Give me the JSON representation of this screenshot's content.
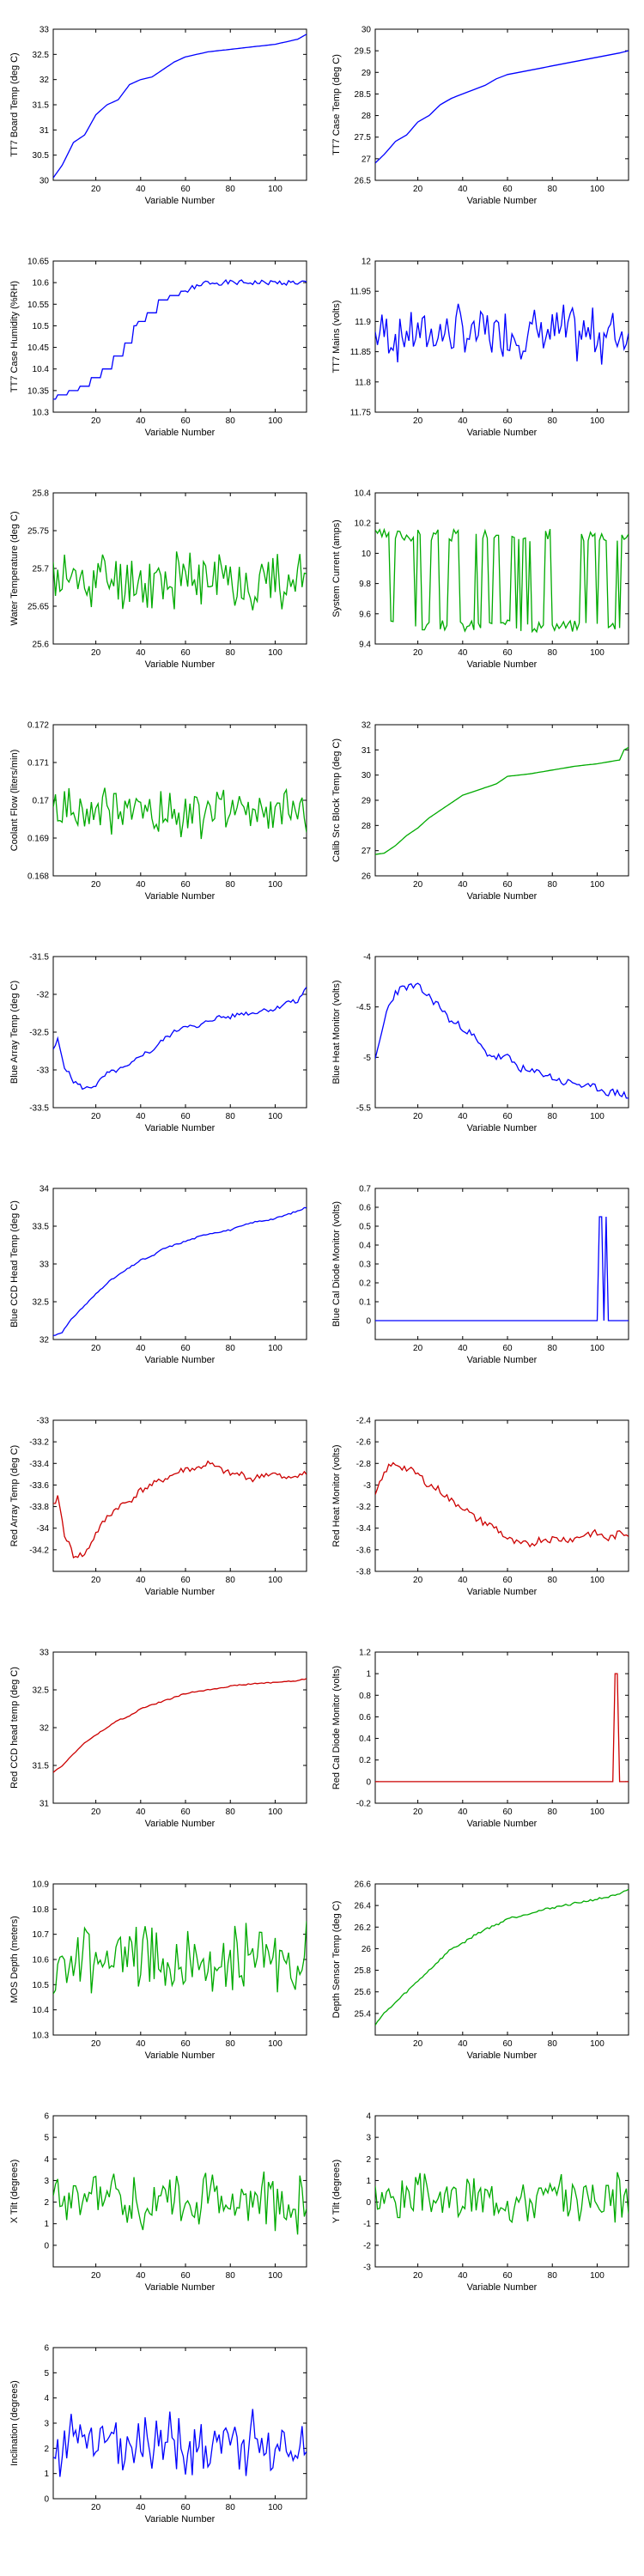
{
  "chart_data": [
    {
      "type": "line",
      "ylabel": "TT7 Board Temp (deg C)",
      "xlabel": "Variable Number",
      "xlim": [
        1,
        114
      ],
      "ylim": [
        30,
        33
      ],
      "yticks": [
        "30",
        "30.5",
        "31",
        "31.5",
        "32",
        "32.5",
        "33"
      ],
      "xticks": [
        "20",
        "40",
        "60",
        "80",
        "100"
      ],
      "color": "#0000ff",
      "mode": "smooth",
      "x": [
        1,
        5,
        10,
        15,
        20,
        25,
        30,
        35,
        40,
        45,
        50,
        55,
        60,
        65,
        70,
        80,
        90,
        100,
        110,
        114
      ],
      "y": [
        30.05,
        30.3,
        30.75,
        30.9,
        31.3,
        31.5,
        31.6,
        31.9,
        32.0,
        32.05,
        32.2,
        32.35,
        32.45,
        32.5,
        32.55,
        32.6,
        32.65,
        32.7,
        32.8,
        32.9
      ]
    },
    {
      "type": "line",
      "ylabel": "TT7 Case Temp (deg C)",
      "xlabel": "Variable Number",
      "xlim": [
        1,
        114
      ],
      "ylim": [
        26.5,
        30
      ],
      "yticks": [
        "26.5",
        "27",
        "27.5",
        "28",
        "28.5",
        "29",
        "29.5",
        "30"
      ],
      "xticks": [
        "20",
        "40",
        "60",
        "80",
        "100"
      ],
      "color": "#0000ff",
      "mode": "smooth",
      "x": [
        1,
        5,
        10,
        15,
        20,
        25,
        30,
        35,
        40,
        45,
        50,
        55,
        60,
        65,
        70,
        80,
        90,
        100,
        110,
        114
      ],
      "y": [
        26.9,
        27.1,
        27.4,
        27.55,
        27.85,
        28.0,
        28.25,
        28.4,
        28.5,
        28.6,
        28.7,
        28.85,
        28.95,
        29.0,
        29.05,
        29.15,
        29.25,
        29.35,
        29.45,
        29.5
      ]
    },
    {
      "type": "line",
      "ylabel": "TT7 Case Humidity (%RH)",
      "xlabel": "Variable Number",
      "xlim": [
        1,
        114
      ],
      "ylim": [
        10.3,
        10.65
      ],
      "yticks": [
        "10.3",
        "10.35",
        "10.4",
        "10.45",
        "10.5",
        "10.55",
        "10.6",
        "10.65"
      ],
      "xticks": [
        "20",
        "40",
        "60",
        "80",
        "100"
      ],
      "color": "#0000ff",
      "mode": "step",
      "x": [
        1,
        5,
        10,
        15,
        20,
        25,
        30,
        35,
        38,
        40,
        45,
        50,
        55,
        60,
        65,
        70,
        114
      ],
      "y": [
        10.33,
        10.34,
        10.35,
        10.36,
        10.38,
        10.4,
        10.43,
        10.46,
        10.5,
        10.51,
        10.53,
        10.56,
        10.57,
        10.58,
        10.59,
        10.6,
        10.6
      ],
      "noise_amplitude": 0.012,
      "noise_start": 60
    },
    {
      "type": "line",
      "ylabel": "TT7 Mains (volts)",
      "xlabel": "Variable Number",
      "xlim": [
        1,
        114
      ],
      "ylim": [
        11.75,
        12
      ],
      "yticks": [
        "11.75",
        "11.8",
        "11.85",
        "11.9",
        "11.95",
        "12"
      ],
      "xticks": [
        "20",
        "40",
        "60",
        "80",
        "100"
      ],
      "color": "#0000ff",
      "mode": "noise",
      "base": 11.88,
      "noise_amplitude": 0.055,
      "levels": [
        11.85,
        11.9,
        11.93
      ],
      "seed": 7
    },
    {
      "type": "line",
      "ylabel": "Water Temperature (deg C)",
      "xlabel": "Variable Number",
      "xlim": [
        1,
        114
      ],
      "ylim": [
        25.6,
        25.8
      ],
      "yticks": [
        "25.6",
        "25.65",
        "25.7",
        "25.75",
        "25.8"
      ],
      "xticks": [
        "20",
        "40",
        "60",
        "80",
        "100"
      ],
      "color": "#00aa00",
      "mode": "noise",
      "base": 25.685,
      "noise_amplitude": 0.05,
      "seed": 11
    },
    {
      "type": "line",
      "ylabel": "System Current (amps)",
      "xlabel": "Variable Number",
      "xlim": [
        1,
        114
      ],
      "ylim": [
        9.4,
        10.4
      ],
      "yticks": [
        "9.4",
        "9.6",
        "9.8",
        "10",
        "10.2",
        "10.4"
      ],
      "xticks": [
        "20",
        "40",
        "60",
        "80",
        "100"
      ],
      "color": "#00aa00",
      "mode": "square",
      "low": 9.52,
      "high": 10.12,
      "noise_amplitude": 0.08,
      "seed": 3
    },
    {
      "type": "line",
      "ylabel": "Coolant Flow (liters/min)",
      "xlabel": "Variable Number",
      "xlim": [
        1,
        114
      ],
      "ylim": [
        0.168,
        0.172
      ],
      "yticks": [
        "0.168",
        "0.169",
        "0.17",
        "0.171",
        "0.172"
      ],
      "xticks": [
        "20",
        "40",
        "60",
        "80",
        "100"
      ],
      "color": "#00aa00",
      "mode": "noise",
      "base": 0.1697,
      "noise_amplitude": 0.0008,
      "seed": 19
    },
    {
      "type": "line",
      "ylabel": "Calib Src Block Temp (deg C)",
      "xlabel": "Variable Number",
      "xlim": [
        1,
        114
      ],
      "ylim": [
        26,
        32
      ],
      "yticks": [
        "26",
        "27",
        "28",
        "29",
        "30",
        "31",
        "32"
      ],
      "xticks": [
        "20",
        "40",
        "60",
        "80",
        "100"
      ],
      "color": "#00aa00",
      "mode": "smooth",
      "x": [
        1,
        5,
        10,
        15,
        20,
        25,
        30,
        35,
        40,
        45,
        50,
        55,
        60,
        65,
        70,
        80,
        90,
        100,
        110,
        112,
        114
      ],
      "y": [
        26.85,
        26.9,
        27.2,
        27.6,
        27.9,
        28.3,
        28.6,
        28.9,
        29.2,
        29.35,
        29.5,
        29.65,
        29.95,
        30.0,
        30.05,
        30.2,
        30.35,
        30.45,
        30.6,
        31.0,
        31.1
      ]
    },
    {
      "type": "line",
      "ylabel": "Blue Array Temp (deg C)",
      "xlabel": "Variable Number",
      "xlim": [
        1,
        114
      ],
      "ylim": [
        -33.5,
        -31.5
      ],
      "yticks": [
        "-33.5",
        "-33",
        "-32.5",
        "-32",
        "-31.5"
      ],
      "xticks": [
        "20",
        "40",
        "60",
        "80",
        "100"
      ],
      "color": "#0000ff",
      "mode": "smooth",
      "x": [
        1,
        3,
        6,
        10,
        15,
        20,
        25,
        30,
        35,
        40,
        45,
        50,
        55,
        60,
        65,
        70,
        75,
        80,
        85,
        90,
        95,
        100,
        105,
        110,
        114
      ],
      "y": [
        -32.75,
        -32.6,
        -32.95,
        -33.15,
        -33.25,
        -33.2,
        -33.05,
        -33.0,
        -32.95,
        -32.8,
        -32.75,
        -32.6,
        -32.5,
        -32.4,
        -32.45,
        -32.35,
        -32.3,
        -32.3,
        -32.25,
        -32.25,
        -32.2,
        -32.2,
        -32.1,
        -32.1,
        -31.9
      ],
      "noise_amplitude": 0.06,
      "seed": 5
    },
    {
      "type": "line",
      "ylabel": "Blue Heat Monitor (volts)",
      "xlabel": "Variable Number",
      "xlim": [
        1,
        114
      ],
      "ylim": [
        -5.5,
        -4
      ],
      "yticks": [
        "-5.5",
        "-5",
        "-4.5",
        "-4"
      ],
      "xticks": [
        "20",
        "40",
        "60",
        "80",
        "100"
      ],
      "color": "#0000ff",
      "mode": "smooth",
      "x": [
        1,
        3,
        6,
        10,
        15,
        20,
        25,
        30,
        35,
        40,
        45,
        50,
        55,
        60,
        65,
        70,
        75,
        80,
        85,
        90,
        95,
        100,
        105,
        110,
        114
      ],
      "y": [
        -5.05,
        -4.85,
        -4.55,
        -4.35,
        -4.3,
        -4.3,
        -4.4,
        -4.5,
        -4.65,
        -4.7,
        -4.8,
        -4.95,
        -5.0,
        -5.0,
        -5.1,
        -5.15,
        -5.15,
        -5.2,
        -5.25,
        -5.25,
        -5.3,
        -5.3,
        -5.35,
        -5.35,
        -5.4
      ],
      "noise_amplitude": 0.08,
      "seed": 23
    },
    {
      "type": "line",
      "ylabel": "Blue CCD Head Temp (deg C)",
      "xlabel": "Variable Number",
      "xlim": [
        1,
        114
      ],
      "ylim": [
        32,
        34
      ],
      "yticks": [
        "32",
        "32.5",
        "33",
        "33.5",
        "34"
      ],
      "xticks": [
        "20",
        "40",
        "60",
        "80",
        "100"
      ],
      "color": "#0000ff",
      "mode": "smooth",
      "x": [
        1,
        5,
        10,
        15,
        20,
        25,
        30,
        35,
        40,
        45,
        50,
        55,
        60,
        65,
        70,
        80,
        90,
        100,
        110,
        114
      ],
      "y": [
        32.05,
        32.1,
        32.3,
        32.45,
        32.6,
        32.75,
        32.85,
        32.95,
        33.05,
        33.1,
        33.2,
        33.25,
        33.3,
        33.35,
        33.4,
        33.45,
        33.55,
        33.6,
        33.7,
        33.75
      ],
      "noise_amplitude": 0.02,
      "seed": 31
    },
    {
      "type": "line",
      "ylabel": "Blue Cal Diode Monitor (volts)",
      "xlabel": "Variable Number",
      "xlim": [
        1,
        114
      ],
      "ylim": [
        -0.1,
        0.7
      ],
      "yticks": [
        "0",
        "0.1",
        "0.2",
        "0.3",
        "0.4",
        "0.5",
        "0.6",
        "0.7"
      ],
      "xticks": [
        "20",
        "40",
        "60",
        "80",
        "100"
      ],
      "color": "#0000ff",
      "mode": "raw",
      "x": [
        1,
        100,
        101,
        102,
        103,
        104,
        105,
        106,
        114
      ],
      "y": [
        0,
        0,
        0.55,
        0.55,
        0,
        0.55,
        0,
        0,
        0
      ]
    },
    {
      "type": "line",
      "ylabel": "Red Array Temp (deg C)",
      "xlabel": "Variable Number",
      "xlim": [
        1,
        114
      ],
      "ylim": [
        -34.4,
        -33
      ],
      "yticks": [
        "-34.2",
        "-34",
        "-33.8",
        "-33.6",
        "-33.4",
        "-33.2",
        "-33"
      ],
      "xticks": [
        "20",
        "40",
        "60",
        "80",
        "100"
      ],
      "color": "#cc0000",
      "mode": "smooth",
      "x": [
        1,
        3,
        6,
        10,
        15,
        20,
        25,
        30,
        35,
        40,
        45,
        50,
        55,
        60,
        65,
        70,
        75,
        80,
        85,
        90,
        95,
        100,
        105,
        110,
        114
      ],
      "y": [
        -33.8,
        -33.7,
        -34.05,
        -34.25,
        -34.25,
        -34.05,
        -33.9,
        -33.8,
        -33.75,
        -33.65,
        -33.6,
        -33.55,
        -33.5,
        -33.45,
        -33.45,
        -33.4,
        -33.45,
        -33.5,
        -33.5,
        -33.55,
        -33.5,
        -33.5,
        -33.55,
        -33.5,
        -33.5
      ],
      "noise_amplitude": 0.06,
      "seed": 41
    },
    {
      "type": "line",
      "ylabel": "Red Heat Monitor (volts)",
      "xlabel": "Variable Number",
      "xlim": [
        1,
        114
      ],
      "ylim": [
        -3.8,
        -2.4
      ],
      "yticks": [
        "-3.8",
        "-3.6",
        "-3.4",
        "-3.2",
        "-3",
        "-2.8",
        "-2.6",
        "-2.4"
      ],
      "xticks": [
        "20",
        "40",
        "60",
        "80",
        "100"
      ],
      "color": "#cc0000",
      "mode": "smooth",
      "x": [
        1,
        3,
        6,
        10,
        15,
        20,
        25,
        30,
        35,
        40,
        45,
        50,
        55,
        60,
        65,
        70,
        75,
        80,
        85,
        90,
        95,
        100,
        105,
        110,
        114
      ],
      "y": [
        -3.1,
        -3.0,
        -2.85,
        -2.8,
        -2.85,
        -2.9,
        -3.0,
        -3.05,
        -3.15,
        -3.2,
        -3.3,
        -3.35,
        -3.4,
        -3.5,
        -3.55,
        -3.55,
        -3.5,
        -3.5,
        -3.5,
        -3.5,
        -3.45,
        -3.45,
        -3.5,
        -3.45,
        -3.45
      ],
      "noise_amplitude": 0.07,
      "seed": 43
    },
    {
      "type": "line",
      "ylabel": "Red CCD head temp (deg C)",
      "xlabel": "Variable Number",
      "xlim": [
        1,
        114
      ],
      "ylim": [
        31,
        33
      ],
      "yticks": [
        "31",
        "31.5",
        "32",
        "32.5",
        "33"
      ],
      "xticks": [
        "20",
        "40",
        "60",
        "80",
        "100"
      ],
      "color": "#cc0000",
      "mode": "smooth",
      "x": [
        1,
        5,
        10,
        15,
        20,
        25,
        30,
        35,
        40,
        45,
        50,
        55,
        60,
        65,
        70,
        80,
        90,
        100,
        110,
        114
      ],
      "y": [
        31.4,
        31.5,
        31.65,
        31.8,
        31.9,
        32.0,
        32.1,
        32.15,
        32.25,
        32.3,
        32.35,
        32.4,
        32.45,
        32.48,
        32.5,
        32.55,
        32.58,
        32.6,
        32.62,
        32.65
      ],
      "noise_amplitude": 0.015,
      "seed": 47
    },
    {
      "type": "line",
      "ylabel": "Red Cal Diode Monitor (volts)",
      "xlabel": "Variable Number",
      "xlim": [
        1,
        114
      ],
      "ylim": [
        -0.2,
        1.2
      ],
      "yticks": [
        "-0.2",
        "0",
        "0.2",
        "0.4",
        "0.6",
        "0.8",
        "1",
        "1.2"
      ],
      "xticks": [
        "20",
        "40",
        "60",
        "80",
        "100"
      ],
      "color": "#cc0000",
      "mode": "raw",
      "x": [
        1,
        107,
        108,
        109,
        110,
        111,
        114
      ],
      "y": [
        0,
        0,
        1.0,
        1.0,
        0,
        0,
        0
      ]
    },
    {
      "type": "line",
      "ylabel": "MOS Depth (meters)",
      "xlabel": "Variable Number",
      "xlim": [
        1,
        114
      ],
      "ylim": [
        10.3,
        10.9
      ],
      "yticks": [
        "10.3",
        "10.4",
        "10.5",
        "10.6",
        "10.7",
        "10.8",
        "10.9"
      ],
      "xticks": [
        "20",
        "40",
        "60",
        "80",
        "100"
      ],
      "color": "#00aa00",
      "mode": "noise",
      "base": 10.6,
      "noise_amplitude": 0.17,
      "seed": 53
    },
    {
      "type": "line",
      "ylabel": "Depth Sensor Temp (deg C)",
      "xlabel": "Variable Number",
      "xlim": [
        1,
        114
      ],
      "ylim": [
        25.2,
        26.6
      ],
      "yticks": [
        "25.4",
        "25.6",
        "25.8",
        "26",
        "26.2",
        "26.4",
        "26.6"
      ],
      "xticks": [
        "20",
        "40",
        "60",
        "80",
        "100"
      ],
      "color": "#00aa00",
      "mode": "smooth",
      "x": [
        1,
        5,
        10,
        15,
        20,
        25,
        30,
        35,
        40,
        45,
        50,
        55,
        60,
        65,
        70,
        80,
        90,
        100,
        110,
        114
      ],
      "y": [
        25.3,
        25.4,
        25.5,
        25.6,
        25.7,
        25.8,
        25.9,
        26.0,
        26.05,
        26.12,
        26.18,
        26.22,
        26.28,
        26.3,
        26.33,
        26.38,
        26.42,
        26.46,
        26.5,
        26.55
      ],
      "noise_amplitude": 0.02,
      "seed": 59
    },
    {
      "type": "line",
      "ylabel": "X Tilt (degrees)",
      "xlabel": "Variable Number",
      "xlim": [
        1,
        114
      ],
      "ylim": [
        -1,
        6
      ],
      "yticks": [
        "0",
        "1",
        "2",
        "3",
        "4",
        "5",
        "6"
      ],
      "xticks": [
        "20",
        "40",
        "60",
        "80",
        "100"
      ],
      "color": "#00aa00",
      "mode": "noise",
      "base": 2.0,
      "noise_amplitude": 1.6,
      "seed": 61
    },
    {
      "type": "line",
      "ylabel": "Y Tilt (degrees)",
      "xlabel": "Variable Number",
      "xlim": [
        1,
        114
      ],
      "ylim": [
        -3,
        4
      ],
      "yticks": [
        "-3",
        "-2",
        "-1",
        "0",
        "1",
        "2",
        "3",
        "4"
      ],
      "xticks": [
        "20",
        "40",
        "60",
        "80",
        "100"
      ],
      "color": "#00aa00",
      "mode": "noise",
      "base": 0.2,
      "noise_amplitude": 1.4,
      "seed": 67
    },
    {
      "type": "line",
      "ylabel": "Inclination (degrees)",
      "xlabel": "Variable Number",
      "xlim": [
        1,
        114
      ],
      "ylim": [
        0,
        6
      ],
      "yticks": [
        "0",
        "1",
        "2",
        "3",
        "4",
        "5",
        "6"
      ],
      "xticks": [
        "20",
        "40",
        "60",
        "80",
        "100"
      ],
      "color": "#0000ff",
      "mode": "noise",
      "base": 2.2,
      "noise_amplitude": 1.5,
      "floor": 0.5,
      "seed": 71
    }
  ]
}
